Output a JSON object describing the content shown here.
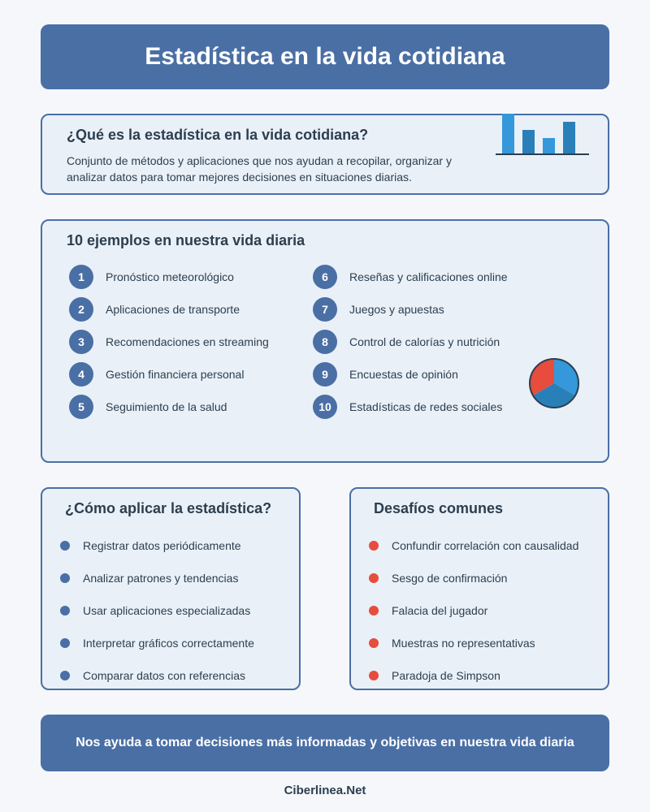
{
  "title": "Estadística en la vida cotidiana",
  "what": {
    "heading": "¿Qué es la estadística en la vida cotidiana?",
    "description": "Conjunto de métodos y aplicaciones que nos ayudan a recopilar, organizar y analizar datos para tomar mejores decisiones en situaciones diarias."
  },
  "examples": {
    "heading": "10 ejemplos en nuestra vida diaria",
    "items": [
      {
        "num": "1",
        "label": "Pronóstico meteorológico"
      },
      {
        "num": "2",
        "label": "Aplicaciones de transporte"
      },
      {
        "num": "3",
        "label": "Recomendaciones en streaming"
      },
      {
        "num": "4",
        "label": "Gestión financiera personal"
      },
      {
        "num": "5",
        "label": "Seguimiento de la salud"
      },
      {
        "num": "6",
        "label": "Reseñas y calificaciones online"
      },
      {
        "num": "7",
        "label": "Juegos y apuestas"
      },
      {
        "num": "8",
        "label": "Control de calorías y nutrición"
      },
      {
        "num": "9",
        "label": "Encuestas de opinión"
      },
      {
        "num": "10",
        "label": "Estadísticas de redes sociales"
      }
    ]
  },
  "how": {
    "heading": "¿Cómo aplicar la estadística?",
    "items": [
      "Registrar datos periódicamente",
      "Analizar patrones y tendencias",
      "Usar aplicaciones especializadas",
      "Interpretar gráficos correctamente",
      "Comparar datos con referencias"
    ]
  },
  "challenges": {
    "heading": "Desafíos comunes",
    "items": [
      "Confundir correlación con causalidad",
      "Sesgo de confirmación",
      "Falacia del jugador",
      "Muestras no representativas",
      "Paradoja de Simpson"
    ]
  },
  "footer": "Nos ayuda a tomar decisiones más informadas y objetivas en nuestra vida diaria",
  "credit": "Ciberlinea.Net",
  "colors": {
    "primary": "#4a6fa5",
    "accent_red": "#e74c3c",
    "bar_light": "#3498db",
    "bar_dark": "#2980b9",
    "card_bg": "#e9f0f7",
    "text": "#2c3e50"
  },
  "icons": [
    "bar-chart-icon",
    "pie-chart-icon"
  ]
}
